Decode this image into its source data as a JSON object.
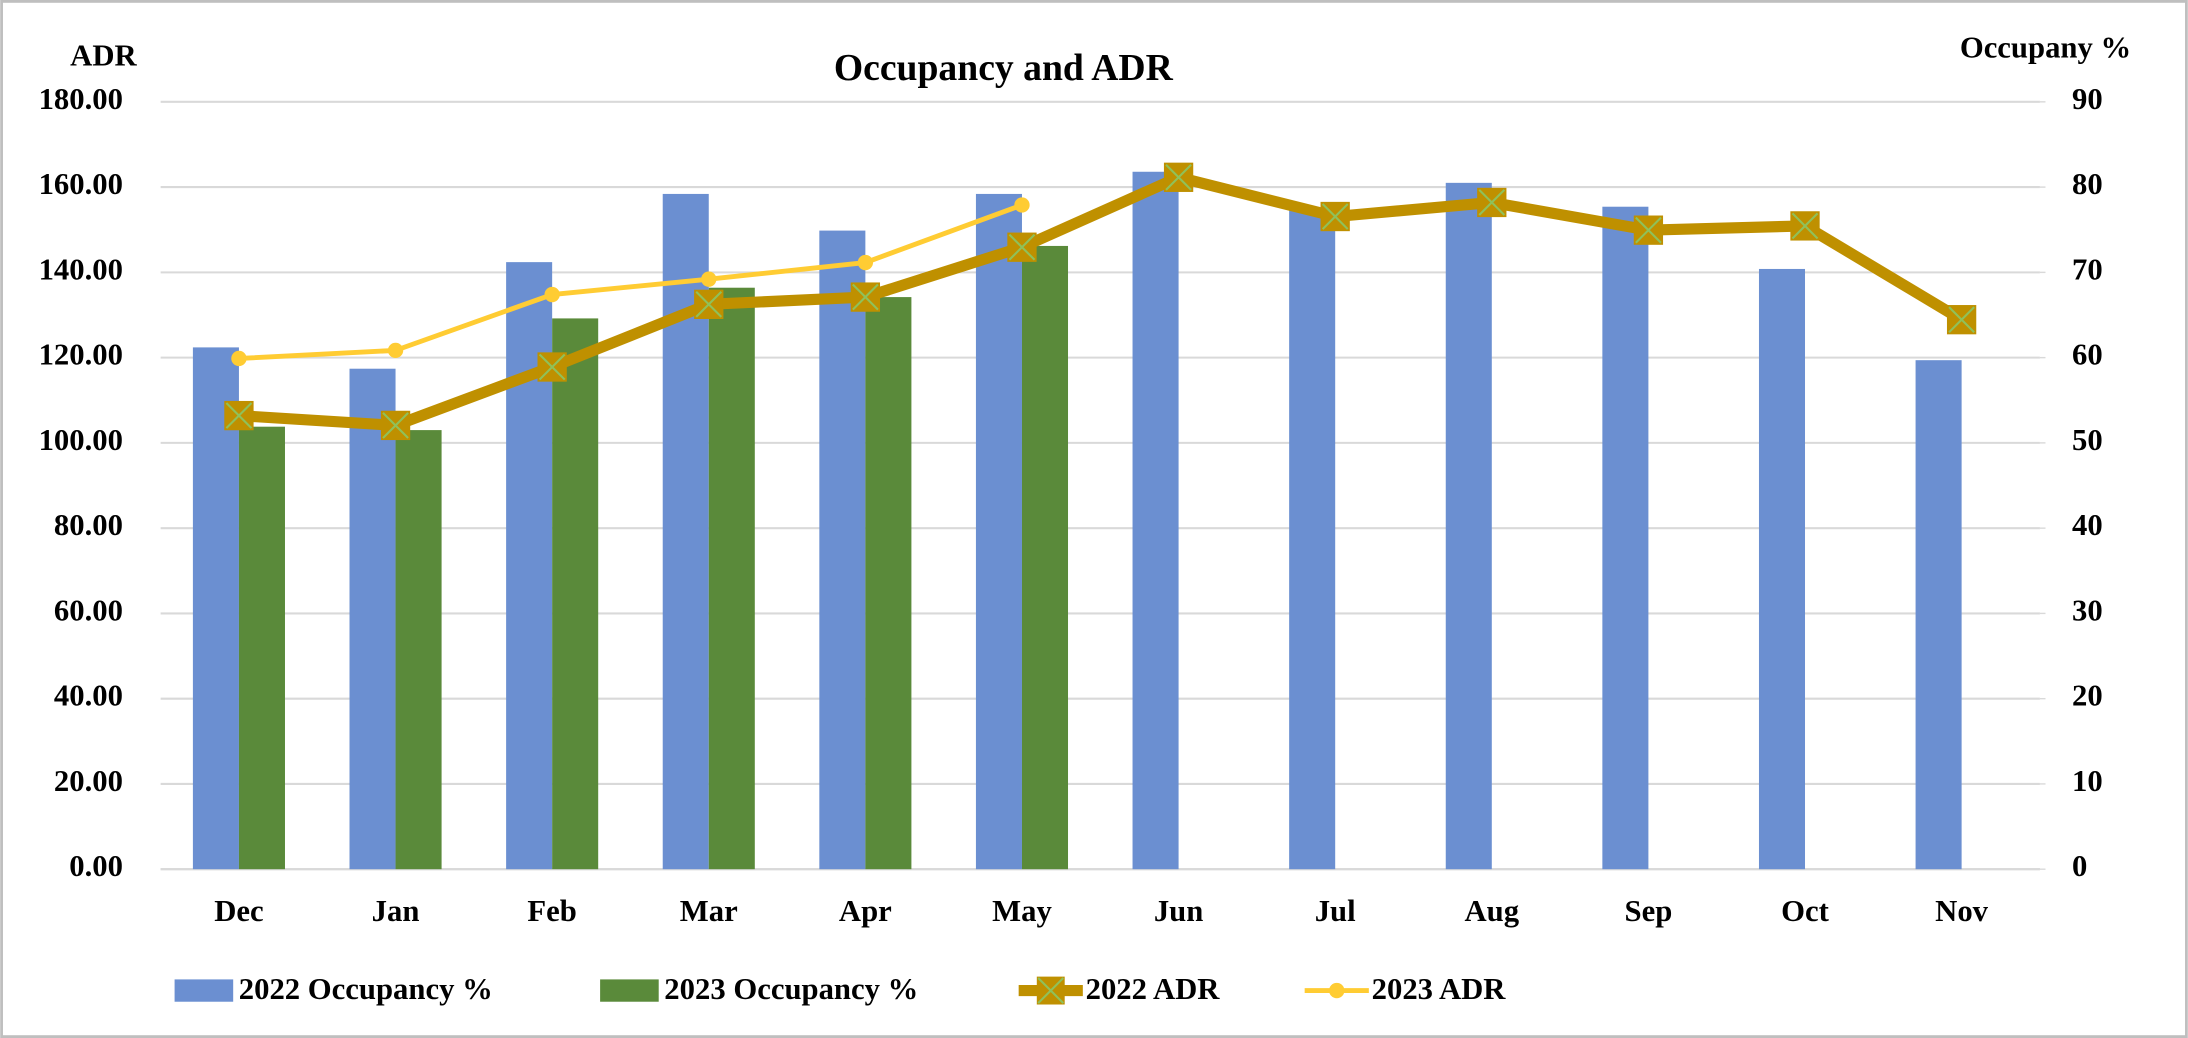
{
  "chart_data": {
    "type": "bar_line",
    "title": "Occupancy and ADR",
    "y_label": "ADR",
    "y2_label": "Occupany %",
    "categories": [
      "Dec",
      "Jan",
      "Feb",
      "Mar",
      "Apr",
      "May",
      "Jun",
      "Jul",
      "Aug",
      "Sep",
      "Oct",
      "Nov"
    ],
    "series": [
      {
        "name": "2022 Occupancy %",
        "type": "bar",
        "axis": "y2",
        "color": "#6b8fd1",
        "values": [
          61.2,
          58.7,
          71.2,
          79.2,
          74.9,
          79.2,
          81.8,
          77.4,
          80.5,
          77.7,
          70.4,
          59.7
        ]
      },
      {
        "name": "2023 Occupancy %",
        "type": "bar",
        "axis": "y2",
        "color": "#5a8a3a",
        "values": [
          51.9,
          51.5,
          64.6,
          68.2,
          67.1,
          73.1,
          null,
          null,
          null,
          null,
          null,
          null
        ]
      },
      {
        "name": "2022 ADR",
        "type": "line",
        "color": "#bf9000",
        "marker_color": "#8fc15a",
        "values": [
          106.4,
          104.1,
          117.8,
          132.5,
          134.2,
          145.9,
          162.3,
          153.1,
          156.4,
          149.9,
          150.9,
          128.9
        ]
      },
      {
        "name": "2023 ADR",
        "type": "line",
        "color": "#ffcc33",
        "values": [
          119.8,
          121.7,
          134.8,
          138.4,
          142.3,
          155.8,
          null,
          null,
          null,
          null,
          null,
          null
        ]
      }
    ],
    "ylim": [
      0,
      180
    ],
    "yticks": [
      {
        "value": 0,
        "label": "0.00"
      },
      {
        "value": 20,
        "label": "20.00"
      },
      {
        "value": 40,
        "label": "40.00"
      },
      {
        "value": 60,
        "label": "60.00"
      },
      {
        "value": 80,
        "label": "80.00"
      },
      {
        "value": 100,
        "label": "100.00"
      },
      {
        "value": 120,
        "label": "120.00"
      },
      {
        "value": 140,
        "label": "140.00"
      },
      {
        "value": 160,
        "label": "160.00"
      },
      {
        "value": 180,
        "label": "180.00"
      }
    ],
    "y2lim": [
      0,
      90
    ],
    "y2ticks": [
      0,
      10,
      20,
      30,
      40,
      50,
      60,
      70,
      80,
      90
    ],
    "grid": true,
    "legend": "bottom"
  }
}
